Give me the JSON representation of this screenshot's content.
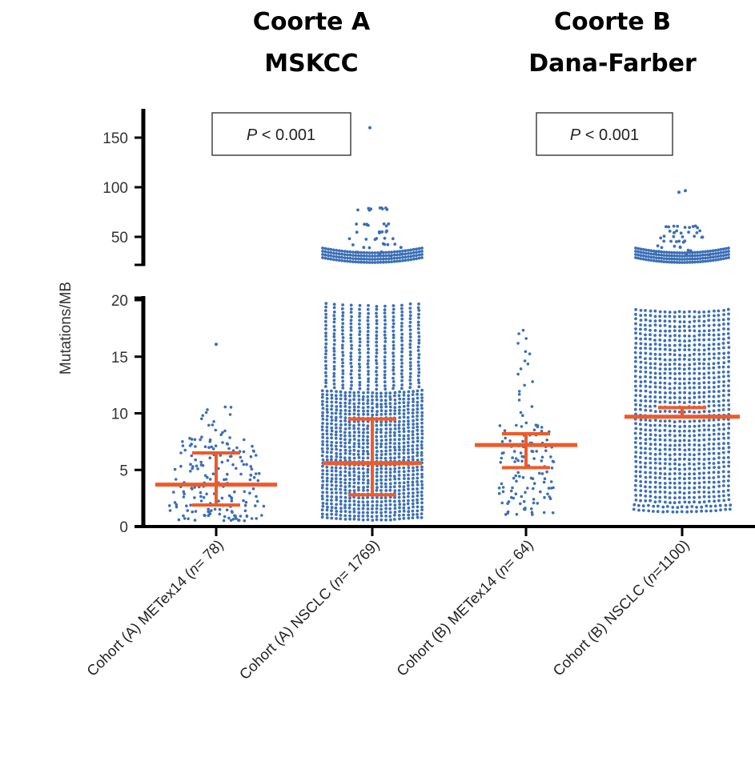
{
  "chart_data": {
    "type": "scatter",
    "cohort_titles": [
      [
        "Coorte A",
        "MSKCC"
      ],
      [
        "Coorte B",
        "Dana-Farber"
      ]
    ],
    "ylabel": "Mutations/MB",
    "y_axis_lower": {
      "range": [
        0,
        20
      ],
      "ticks": [
        "0",
        "5",
        "10",
        "15",
        "20"
      ]
    },
    "y_axis_upper": {
      "range": [
        25,
        150
      ],
      "ticks": [
        "50",
        "100",
        "150"
      ]
    },
    "p_values": [
      {
        "italic": "P",
        "text": " < 0.001"
      },
      {
        "italic": "P",
        "text": " < 0.001"
      }
    ],
    "categories": [
      {
        "pre": "Cohort (A) METex14 (",
        "n": "n",
        "post": "= 78)"
      },
      {
        "pre": "Cohort (A) NSCLC (",
        "n": "n",
        "post": "= 1769)"
      },
      {
        "pre": "Cohort (B) METex14 (",
        "n": "n",
        "post": "= 64)"
      },
      {
        "pre": "Cohort (B) NSCLC (",
        "n": "n",
        "post": "=1100)"
      }
    ],
    "summary_stats": [
      {
        "median": 3.7,
        "q1": 1.9,
        "q3": 6.5
      },
      {
        "median": 5.6,
        "q1": 2.8,
        "q3": 9.5
      },
      {
        "median": 7.2,
        "q1": 5.2,
        "q3": 8.2
      },
      {
        "median": 9.7,
        "q1": null,
        "q3": 10.5
      }
    ],
    "outliers_high": [
      [],
      [
        160,
        78,
        62,
        55,
        48,
        42,
        38,
        33,
        31
      ],
      [],
      [
        95,
        60,
        55,
        50,
        45,
        40,
        35,
        31
      ]
    ],
    "colors": {
      "points": "#3b6fb6",
      "summary": "#f05a28",
      "axis": "#000000"
    },
    "grid": false
  }
}
